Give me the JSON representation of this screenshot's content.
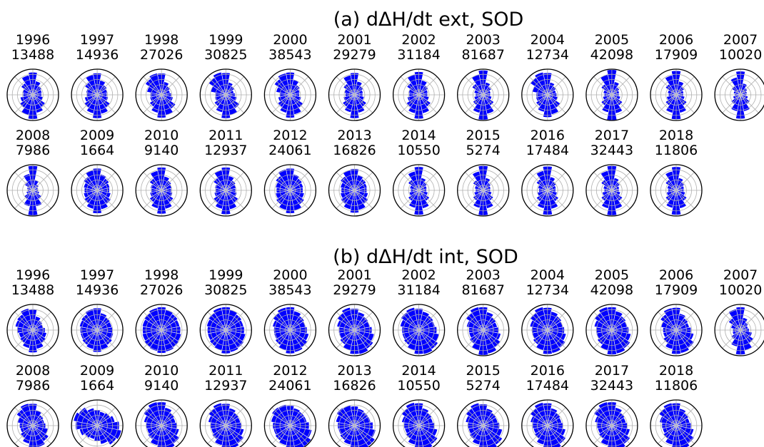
{
  "figure": {
    "bar_color": "#0000ff",
    "edge_color": "#ffffff",
    "grid_color": "#b0b0b0"
  },
  "chart_data": [
    {
      "type": "polar-bar",
      "panel_title": "(a) dΔH/dt ext, SOD",
      "grid": true,
      "radial_rings": 4,
      "subplots": [
        {
          "year": "1996",
          "count": "13488",
          "values": [
            0.88,
            0.55,
            0.42,
            0.36,
            0.34,
            0.4,
            0.58,
            0.72,
            0.95,
            0.8,
            0.62,
            0.5,
            0.38,
            0.42,
            0.55,
            0.78
          ]
        },
        {
          "year": "1997",
          "count": "14936",
          "values": [
            0.85,
            0.58,
            0.46,
            0.4,
            0.38,
            0.44,
            0.6,
            0.76,
            0.92,
            0.74,
            0.6,
            0.5,
            0.42,
            0.44,
            0.58,
            0.8
          ]
        },
        {
          "year": "1998",
          "count": "27026",
          "values": [
            0.84,
            0.52,
            0.4,
            0.34,
            0.38,
            0.46,
            0.66,
            0.82,
            0.9,
            0.72,
            0.56,
            0.46,
            0.44,
            0.58,
            0.76,
            0.86
          ]
        },
        {
          "year": "1999",
          "count": "30825",
          "values": [
            0.86,
            0.5,
            0.4,
            0.32,
            0.36,
            0.44,
            0.64,
            0.8,
            0.92,
            0.7,
            0.54,
            0.44,
            0.42,
            0.6,
            0.8,
            0.9
          ]
        },
        {
          "year": "2000",
          "count": "38543",
          "values": [
            0.88,
            0.6,
            0.46,
            0.38,
            0.36,
            0.44,
            0.62,
            0.78,
            0.9,
            0.72,
            0.58,
            0.48,
            0.4,
            0.56,
            0.74,
            0.86
          ]
        },
        {
          "year": "2001",
          "count": "29279",
          "values": [
            0.86,
            0.54,
            0.42,
            0.34,
            0.32,
            0.38,
            0.56,
            0.72,
            0.92,
            0.7,
            0.56,
            0.44,
            0.36,
            0.4,
            0.52,
            0.78
          ]
        },
        {
          "year": "2002",
          "count": "31184",
          "values": [
            0.9,
            0.58,
            0.44,
            0.36,
            0.34,
            0.4,
            0.56,
            0.74,
            0.94,
            0.74,
            0.58,
            0.46,
            0.38,
            0.42,
            0.56,
            0.8
          ]
        },
        {
          "year": "2003",
          "count": "81687",
          "values": [
            0.96,
            0.5,
            0.38,
            0.3,
            0.28,
            0.34,
            0.5,
            0.76,
            0.98,
            0.72,
            0.48,
            0.36,
            0.3,
            0.36,
            0.52,
            0.8
          ]
        },
        {
          "year": "2004",
          "count": "12734",
          "values": [
            0.86,
            0.5,
            0.4,
            0.34,
            0.36,
            0.42,
            0.6,
            0.78,
            0.88,
            0.68,
            0.54,
            0.46,
            0.44,
            0.6,
            0.8,
            0.9
          ]
        },
        {
          "year": "2005",
          "count": "42098",
          "values": [
            0.98,
            0.52,
            0.36,
            0.3,
            0.28,
            0.34,
            0.5,
            0.74,
            1.0,
            0.7,
            0.5,
            0.36,
            0.3,
            0.34,
            0.5,
            0.8
          ]
        },
        {
          "year": "2006",
          "count": "17909",
          "values": [
            0.94,
            0.54,
            0.38,
            0.3,
            0.28,
            0.34,
            0.5,
            0.72,
            0.96,
            0.72,
            0.5,
            0.38,
            0.3,
            0.34,
            0.5,
            0.78
          ]
        },
        {
          "year": "2007",
          "count": "10020",
          "values": [
            0.92,
            0.46,
            0.32,
            0.26,
            0.24,
            0.3,
            0.44,
            0.66,
            0.94,
            0.66,
            0.44,
            0.3,
            0.24,
            0.28,
            0.42,
            0.7
          ]
        },
        {
          "year": "2008",
          "count": "7986",
          "values": [
            0.96,
            0.42,
            0.28,
            0.22,
            0.2,
            0.26,
            0.4,
            0.64,
            0.98,
            0.64,
            0.4,
            0.26,
            0.2,
            0.24,
            0.38,
            0.66
          ]
        },
        {
          "year": "2009",
          "count": "1664",
          "values": [
            0.86,
            0.64,
            0.56,
            0.5,
            0.48,
            0.54,
            0.64,
            0.76,
            0.9,
            0.74,
            0.62,
            0.54,
            0.5,
            0.54,
            0.64,
            0.8
          ]
        },
        {
          "year": "2010",
          "count": "9140",
          "values": [
            0.9,
            0.56,
            0.46,
            0.4,
            0.38,
            0.44,
            0.56,
            0.74,
            0.92,
            0.72,
            0.56,
            0.46,
            0.4,
            0.44,
            0.56,
            0.78
          ]
        },
        {
          "year": "2011",
          "count": "12937",
          "values": [
            0.9,
            0.58,
            0.46,
            0.4,
            0.38,
            0.44,
            0.58,
            0.76,
            0.94,
            0.74,
            0.58,
            0.46,
            0.4,
            0.44,
            0.58,
            0.8
          ]
        },
        {
          "year": "2012",
          "count": "24061",
          "values": [
            0.86,
            0.64,
            0.56,
            0.52,
            0.5,
            0.56,
            0.66,
            0.8,
            0.9,
            0.78,
            0.66,
            0.58,
            0.54,
            0.58,
            0.68,
            0.84
          ]
        },
        {
          "year": "2013",
          "count": "16826",
          "values": [
            0.84,
            0.62,
            0.54,
            0.5,
            0.48,
            0.54,
            0.64,
            0.78,
            0.88,
            0.76,
            0.64,
            0.56,
            0.52,
            0.56,
            0.66,
            0.82
          ]
        },
        {
          "year": "2014",
          "count": "10550",
          "values": [
            0.92,
            0.5,
            0.38,
            0.32,
            0.3,
            0.36,
            0.5,
            0.72,
            0.96,
            0.7,
            0.5,
            0.38,
            0.32,
            0.36,
            0.5,
            0.76
          ]
        },
        {
          "year": "2015",
          "count": "5274",
          "values": [
            0.96,
            0.5,
            0.36,
            0.3,
            0.28,
            0.34,
            0.48,
            0.72,
            0.98,
            0.7,
            0.48,
            0.36,
            0.3,
            0.34,
            0.48,
            0.76
          ]
        },
        {
          "year": "2016",
          "count": "17484",
          "values": [
            0.94,
            0.54,
            0.42,
            0.34,
            0.32,
            0.38,
            0.52,
            0.74,
            0.96,
            0.72,
            0.52,
            0.4,
            0.34,
            0.38,
            0.52,
            0.78
          ]
        },
        {
          "year": "2017",
          "count": "32443",
          "values": [
            0.96,
            0.5,
            0.38,
            0.3,
            0.28,
            0.34,
            0.5,
            0.74,
            0.98,
            0.72,
            0.5,
            0.38,
            0.3,
            0.34,
            0.5,
            0.78
          ]
        },
        {
          "year": "2018",
          "count": "11806",
          "values": [
            0.92,
            0.5,
            0.38,
            0.32,
            0.3,
            0.36,
            0.5,
            0.72,
            0.96,
            0.7,
            0.5,
            0.38,
            0.32,
            0.36,
            0.5,
            0.76
          ]
        }
      ]
    },
    {
      "type": "polar-bar",
      "panel_title": "(b) dΔH/dt int, SOD",
      "grid": true,
      "radial_rings": 4,
      "subplots": [
        {
          "year": "1996",
          "count": "13488",
          "values": [
            0.82,
            0.55,
            0.45,
            0.42,
            0.48,
            0.55,
            0.62,
            0.75,
            0.88,
            0.72,
            0.6,
            0.56,
            0.62,
            0.7,
            0.74,
            0.86
          ]
        },
        {
          "year": "1997",
          "count": "14936",
          "values": [
            0.86,
            0.68,
            0.6,
            0.58,
            0.6,
            0.64,
            0.7,
            0.78,
            0.86,
            0.76,
            0.7,
            0.66,
            0.66,
            0.7,
            0.74,
            0.84
          ]
        },
        {
          "year": "1998",
          "count": "27026",
          "values": [
            0.9,
            0.82,
            0.76,
            0.72,
            0.74,
            0.78,
            0.82,
            0.86,
            0.9,
            0.84,
            0.8,
            0.76,
            0.74,
            0.76,
            0.8,
            0.88
          ]
        },
        {
          "year": "1999",
          "count": "30825",
          "values": [
            0.9,
            0.8,
            0.74,
            0.7,
            0.72,
            0.78,
            0.84,
            0.88,
            0.92,
            0.82,
            0.76,
            0.72,
            0.72,
            0.76,
            0.82,
            0.9
          ]
        },
        {
          "year": "2000",
          "count": "38543",
          "values": [
            0.9,
            0.76,
            0.66,
            0.62,
            0.66,
            0.74,
            0.82,
            0.88,
            0.92,
            0.8,
            0.7,
            0.64,
            0.64,
            0.7,
            0.8,
            0.9
          ]
        },
        {
          "year": "2001",
          "count": "29279",
          "values": [
            0.84,
            0.72,
            0.64,
            0.62,
            0.68,
            0.78,
            0.88,
            0.96,
            0.94,
            0.8,
            0.68,
            0.62,
            0.62,
            0.7,
            0.8,
            0.9
          ]
        },
        {
          "year": "2002",
          "count": "31184",
          "values": [
            0.84,
            0.74,
            0.68,
            0.64,
            0.7,
            0.8,
            0.9,
            0.96,
            0.94,
            0.8,
            0.7,
            0.66,
            0.66,
            0.74,
            0.84,
            0.9
          ]
        },
        {
          "year": "2003",
          "count": "81687",
          "values": [
            0.9,
            0.72,
            0.6,
            0.56,
            0.6,
            0.7,
            0.82,
            0.94,
            0.98,
            0.8,
            0.64,
            0.56,
            0.56,
            0.66,
            0.8,
            0.92
          ]
        },
        {
          "year": "2004",
          "count": "12734",
          "values": [
            0.88,
            0.74,
            0.66,
            0.62,
            0.66,
            0.74,
            0.84,
            0.92,
            0.94,
            0.8,
            0.68,
            0.62,
            0.62,
            0.7,
            0.82,
            0.92
          ]
        },
        {
          "year": "2005",
          "count": "42098",
          "values": [
            0.9,
            0.76,
            0.66,
            0.62,
            0.66,
            0.76,
            0.86,
            0.94,
            0.96,
            0.8,
            0.68,
            0.62,
            0.62,
            0.7,
            0.82,
            0.92
          ]
        },
        {
          "year": "2006",
          "count": "17909",
          "values": [
            0.88,
            0.66,
            0.56,
            0.52,
            0.58,
            0.7,
            0.84,
            0.92,
            0.94,
            0.76,
            0.6,
            0.52,
            0.52,
            0.6,
            0.74,
            0.88
          ]
        },
        {
          "year": "2007",
          "count": "10020",
          "values": [
            0.9,
            0.5,
            0.36,
            0.3,
            0.34,
            0.46,
            0.62,
            0.82,
            0.96,
            0.66,
            0.44,
            0.32,
            0.3,
            0.38,
            0.56,
            0.84
          ]
        },
        {
          "year": "2008",
          "count": "7986",
          "values": [
            0.86,
            0.62,
            0.5,
            0.46,
            0.5,
            0.6,
            0.74,
            0.86,
            0.9,
            0.72,
            0.58,
            0.5,
            0.52,
            0.62,
            0.76,
            0.88
          ]
        },
        {
          "year": "2009",
          "count": "1664",
          "values": [
            0.62,
            0.56,
            0.6,
            0.7,
            0.86,
            0.96,
            0.9,
            0.74,
            0.6,
            0.54,
            0.58,
            0.7,
            0.84,
            0.94,
            0.86,
            0.7
          ]
        },
        {
          "year": "2010",
          "count": "9140",
          "values": [
            0.92,
            0.72,
            0.6,
            0.56,
            0.6,
            0.7,
            0.84,
            0.94,
            0.96,
            0.78,
            0.64,
            0.58,
            0.6,
            0.7,
            0.84,
            0.94
          ]
        },
        {
          "year": "2011",
          "count": "12937",
          "values": [
            0.86,
            0.7,
            0.6,
            0.58,
            0.62,
            0.72,
            0.84,
            0.92,
            0.92,
            0.78,
            0.64,
            0.58,
            0.6,
            0.7,
            0.82,
            0.9
          ]
        },
        {
          "year": "2012",
          "count": "24061",
          "values": [
            0.78,
            0.7,
            0.66,
            0.66,
            0.74,
            0.86,
            0.98,
            1.0,
            0.92,
            0.78,
            0.7,
            0.66,
            0.68,
            0.76,
            0.86,
            0.84
          ]
        },
        {
          "year": "2013",
          "count": "16826",
          "values": [
            0.76,
            0.68,
            0.64,
            0.64,
            0.72,
            0.84,
            0.96,
            1.0,
            0.92,
            0.76,
            0.68,
            0.64,
            0.66,
            0.74,
            0.84,
            0.82
          ]
        },
        {
          "year": "2014",
          "count": "10550",
          "values": [
            0.88,
            0.7,
            0.6,
            0.56,
            0.62,
            0.74,
            0.88,
            0.96,
            0.94,
            0.76,
            0.62,
            0.56,
            0.58,
            0.68,
            0.82,
            0.92
          ]
        },
        {
          "year": "2015",
          "count": "5274",
          "values": [
            0.84,
            0.68,
            0.6,
            0.58,
            0.64,
            0.76,
            0.9,
            0.98,
            0.94,
            0.76,
            0.64,
            0.58,
            0.6,
            0.7,
            0.82,
            0.9
          ]
        },
        {
          "year": "2016",
          "count": "17484",
          "values": [
            0.88,
            0.7,
            0.6,
            0.56,
            0.6,
            0.72,
            0.86,
            0.96,
            0.94,
            0.76,
            0.62,
            0.56,
            0.58,
            0.68,
            0.82,
            0.92
          ]
        },
        {
          "year": "2017",
          "count": "32443",
          "values": [
            0.92,
            0.72,
            0.6,
            0.56,
            0.6,
            0.72,
            0.86,
            0.96,
            0.96,
            0.78,
            0.62,
            0.56,
            0.58,
            0.68,
            0.84,
            0.94
          ]
        },
        {
          "year": "2018",
          "count": "11806",
          "values": [
            0.88,
            0.68,
            0.58,
            0.54,
            0.58,
            0.7,
            0.84,
            0.94,
            0.94,
            0.76,
            0.6,
            0.54,
            0.56,
            0.66,
            0.8,
            0.9
          ]
        }
      ]
    }
  ]
}
